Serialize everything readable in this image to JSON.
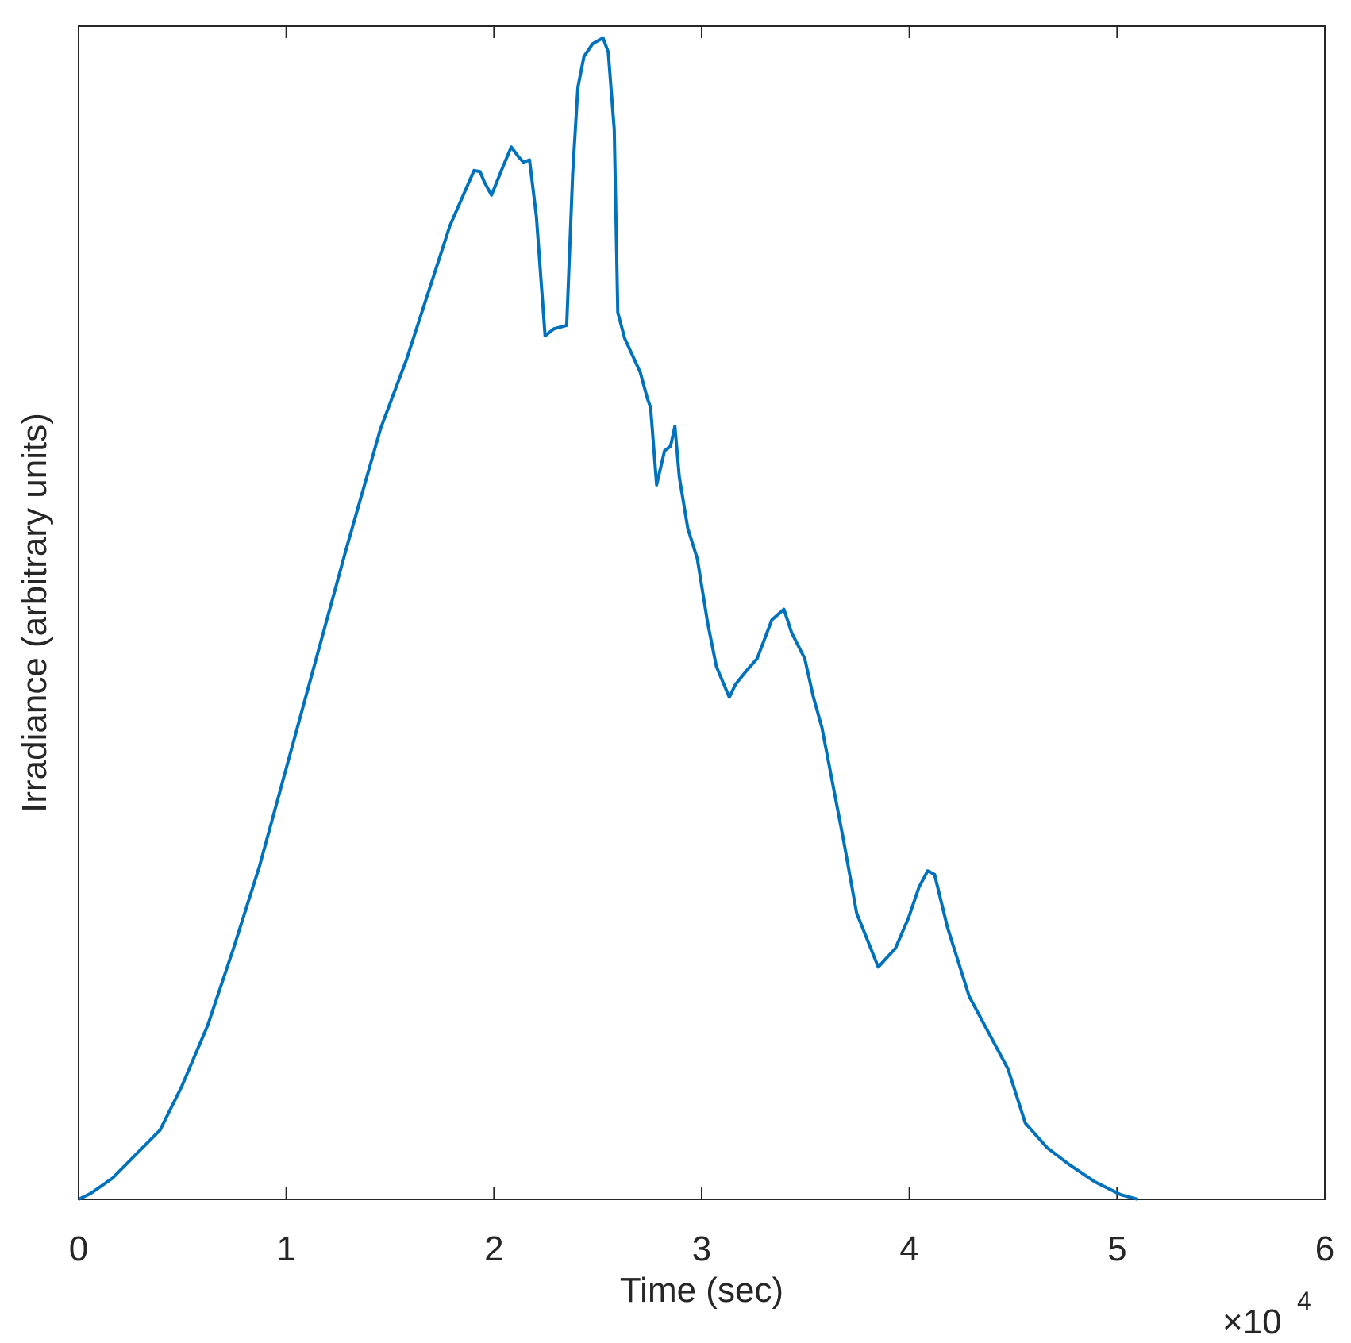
{
  "chart_data": {
    "type": "line",
    "x_label": "Time (sec)",
    "y_label": "Irradiance (arbitrary units)",
    "x_scale_base": "×10",
    "x_scale_exponent": "4",
    "xlim": [
      0,
      6
    ],
    "xticks": [
      0,
      1,
      2,
      3,
      4,
      5,
      6
    ],
    "ylim": [
      0,
      1
    ],
    "series": [
      {
        "color": "#0072bd",
        "x": [
          0,
          0.058,
          0.163,
          0.308,
          0.392,
          0.496,
          0.621,
          0.746,
          0.871,
          0.996,
          1.121,
          1.288,
          1.454,
          1.579,
          1.788,
          1.904,
          1.933,
          1.954,
          1.988,
          2.038,
          2.083,
          2.121,
          2.142,
          2.171,
          2.204,
          2.246,
          2.288,
          2.35,
          2.379,
          2.404,
          2.433,
          2.475,
          2.525,
          2.55,
          2.579,
          2.596,
          2.629,
          2.704,
          2.738,
          2.754,
          2.783,
          2.821,
          2.85,
          2.871,
          2.892,
          2.933,
          2.979,
          3.029,
          3.071,
          3.133,
          3.163,
          3.213,
          3.267,
          3.338,
          3.396,
          3.433,
          3.496,
          3.538,
          3.579,
          3.683,
          3.746,
          3.85,
          3.933,
          3.996,
          4.046,
          4.088,
          4.121,
          4.183,
          4.288,
          4.475,
          4.558,
          4.663,
          4.767,
          4.892,
          5.017,
          5.1
        ],
        "values": [
          0,
          0.005,
          0.018,
          0.044,
          0.059,
          0.096,
          0.148,
          0.214,
          0.284,
          0.365,
          0.446,
          0.554,
          0.657,
          0.716,
          0.83,
          0.877,
          0.876,
          0.867,
          0.856,
          0.878,
          0.897,
          0.888,
          0.884,
          0.886,
          0.838,
          0.736,
          0.742,
          0.745,
          0.875,
          0.948,
          0.974,
          0.985,
          0.99,
          0.978,
          0.912,
          0.756,
          0.734,
          0.705,
          0.683,
          0.675,
          0.609,
          0.638,
          0.642,
          0.659,
          0.616,
          0.572,
          0.546,
          0.491,
          0.454,
          0.428,
          0.439,
          0.45,
          0.461,
          0.494,
          0.503,
          0.483,
          0.461,
          0.428,
          0.402,
          0.306,
          0.244,
          0.198,
          0.214,
          0.24,
          0.266,
          0.28,
          0.277,
          0.232,
          0.173,
          0.111,
          0.065,
          0.044,
          0.03,
          0.015,
          0.004,
          0
        ]
      }
    ]
  }
}
